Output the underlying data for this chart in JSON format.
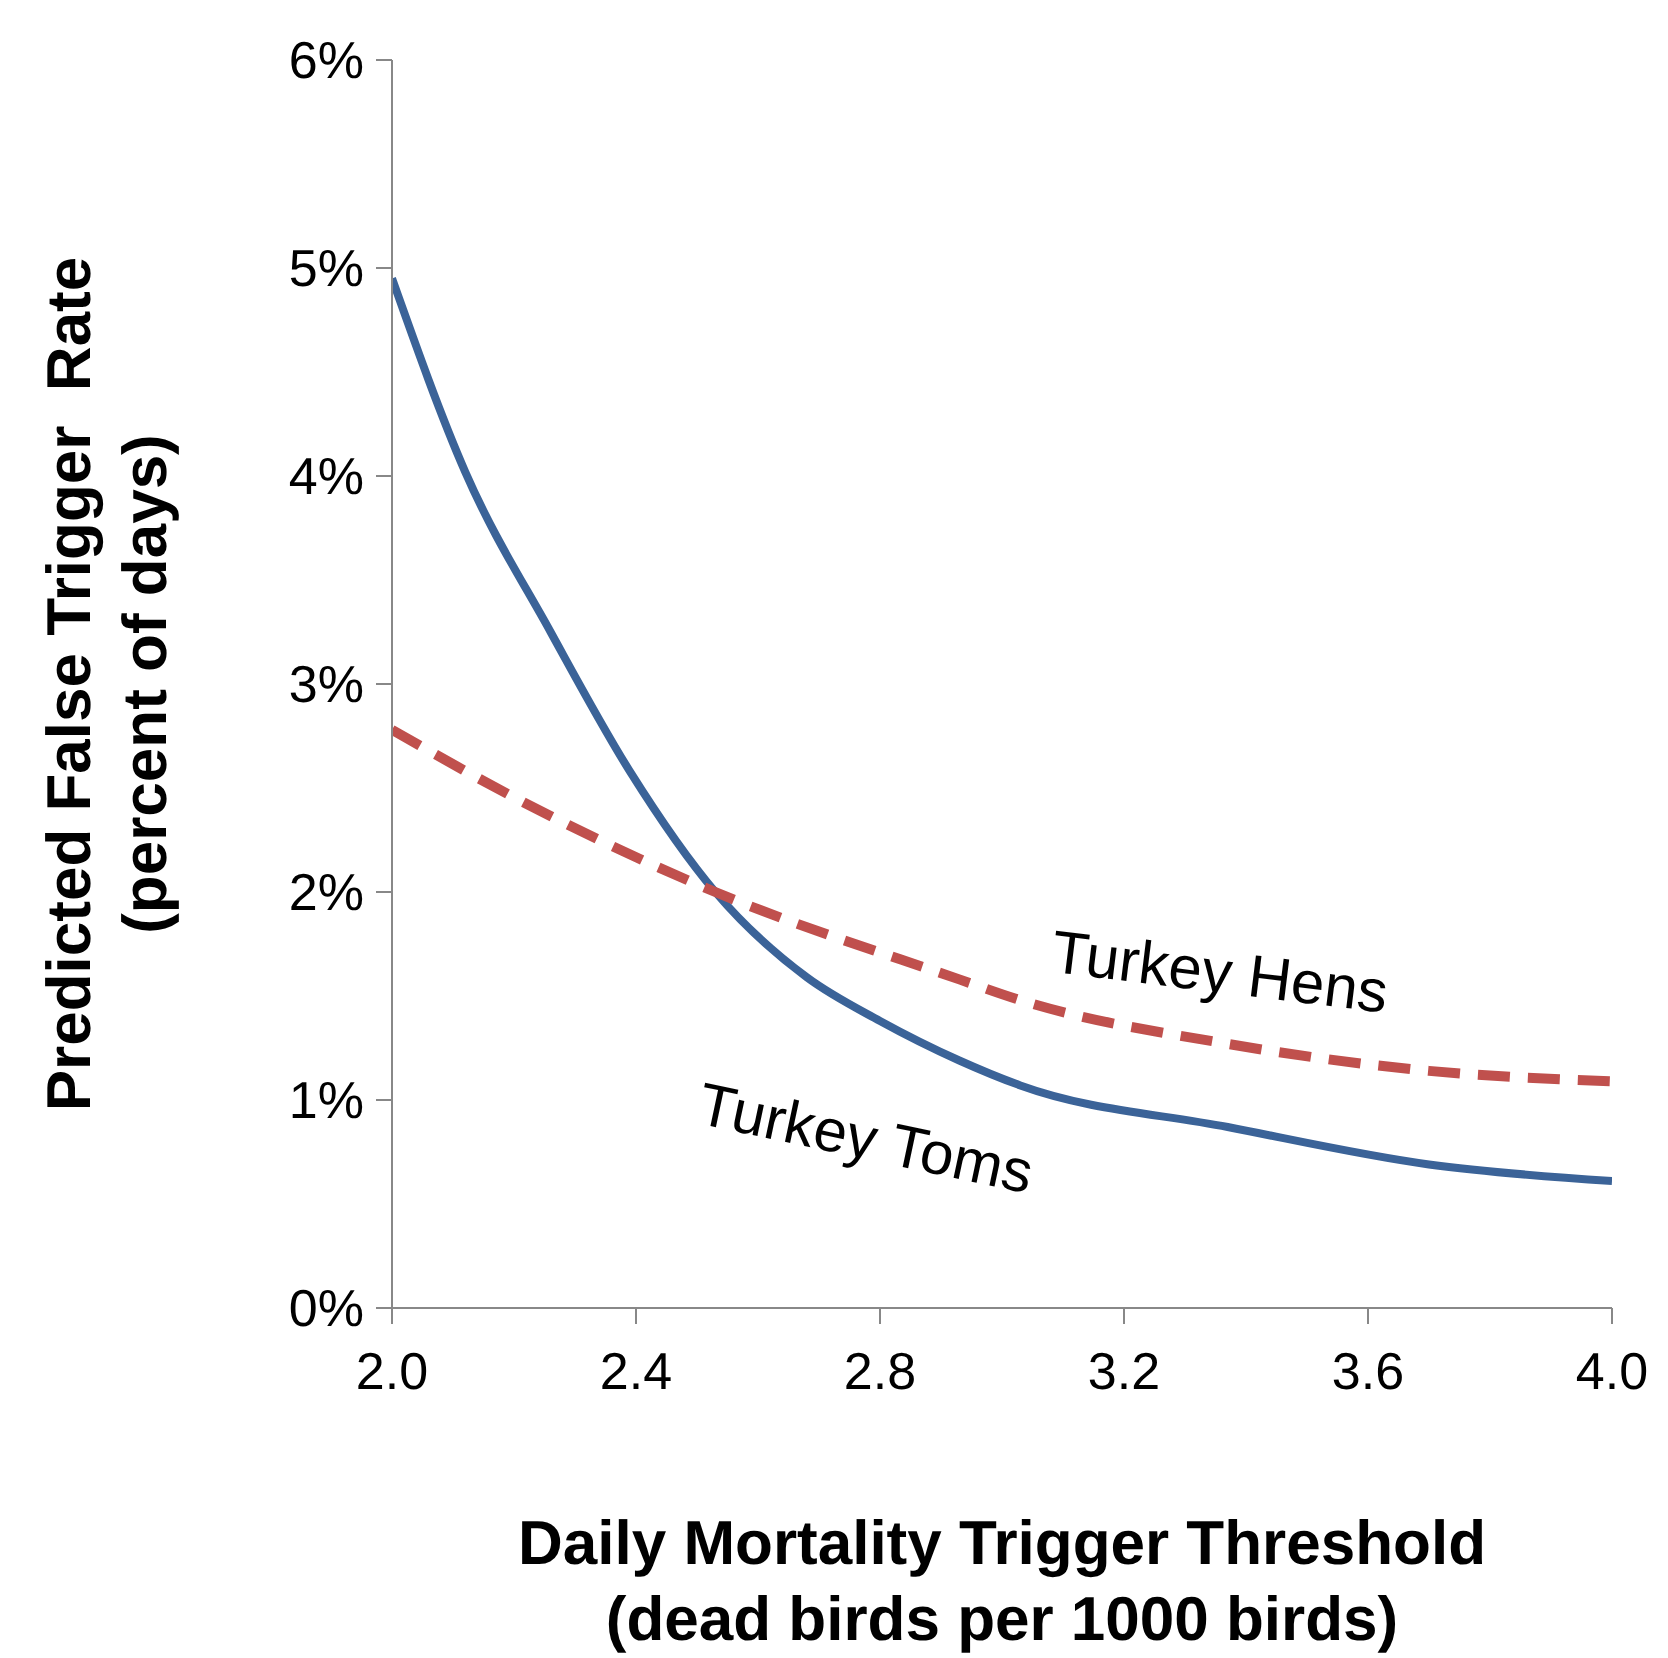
{
  "chart_data": {
    "type": "line",
    "xlabel": "Daily Mortality Trigger Threshold\n(dead birds per 1000 birds)",
    "ylabel": "Predicted False Trigger  Rate\n(percent of days)",
    "xlim": [
      2.0,
      4.0
    ],
    "xticks": [
      {
        "value": 2.0,
        "label": "2.0"
      },
      {
        "value": 2.4,
        "label": "2.4"
      },
      {
        "value": 2.8,
        "label": "2.8"
      },
      {
        "value": 3.2,
        "label": "3.2"
      },
      {
        "value": 3.6,
        "label": "3.6"
      },
      {
        "value": 4.0,
        "label": "4.0"
      }
    ],
    "ylim": [
      0,
      6
    ],
    "yticks": [
      {
        "value": 0,
        "label": "0%"
      },
      {
        "value": 1,
        "label": "1%"
      },
      {
        "value": 2,
        "label": "2%"
      },
      {
        "value": 3,
        "label": "3%"
      },
      {
        "value": 4,
        "label": "4%"
      },
      {
        "value": 5,
        "label": "5%"
      },
      {
        "value": 6,
        "label": "6%"
      }
    ],
    "series": [
      {
        "name": "Turkey Toms",
        "color": "#3b6398",
        "line_style": "solid",
        "x": [
          2.0,
          2.12,
          2.26,
          2.39,
          2.53,
          2.68,
          2.8,
          2.93,
          3.03,
          3.37,
          3.7,
          4.0
        ],
        "values": [
          4.95,
          4.02,
          3.25,
          2.58,
          2.0,
          1.59,
          1.38,
          1.19,
          1.07,
          0.87,
          0.69,
          0.61
        ]
      },
      {
        "name": "Turkey Hens",
        "color": "#c0504d",
        "line_style": "dashed",
        "x": [
          2.0,
          2.21,
          2.53,
          2.93,
          3.03,
          3.37,
          3.7,
          4.0
        ],
        "values": [
          2.78,
          2.44,
          2.0,
          1.58,
          1.48,
          1.27,
          1.14,
          1.09
        ]
      }
    ]
  }
}
